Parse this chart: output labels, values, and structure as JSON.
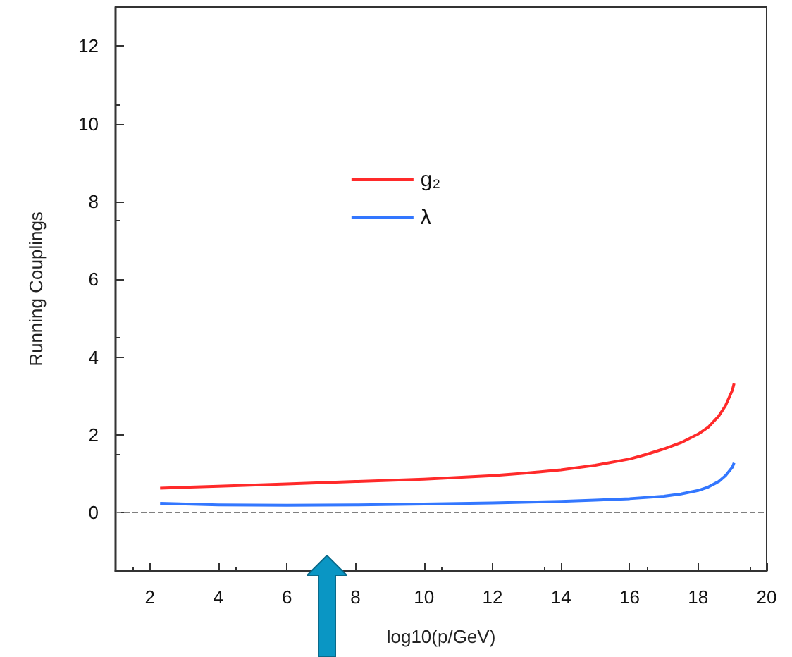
{
  "chart_data": {
    "type": "line",
    "xlabel": "log10(p/GeV)",
    "ylabel": "Running Couplings",
    "xlim": [
      1,
      20
    ],
    "xticks": [
      2,
      4,
      6,
      8,
      10,
      12,
      14,
      16,
      18,
      20
    ],
    "ylim": [
      -1.5,
      13
    ],
    "yticks": [
      0,
      2,
      4,
      6,
      8,
      10,
      12
    ],
    "grid": false,
    "legend": "top",
    "marker": "none",
    "line_style": "solid",
    "ref_lines": [
      {
        "axis": "y",
        "value": 0,
        "color": "#808080",
        "line_style": "dashed"
      }
    ],
    "series": [
      {
        "name": "g₂",
        "color": "#ff2a2a",
        "x": [
          2.3,
          4,
          6,
          8,
          10,
          12,
          13,
          14,
          15,
          16,
          16.5,
          17,
          17.5,
          18,
          18.3,
          18.6,
          18.8,
          19,
          19.05
        ],
        "values": [
          0.63,
          0.68,
          0.74,
          0.8,
          0.86,
          0.95,
          1.02,
          1.1,
          1.22,
          1.38,
          1.5,
          1.64,
          1.8,
          2.02,
          2.2,
          2.48,
          2.75,
          3.15,
          3.32
        ]
      },
      {
        "name": "λ",
        "color": "#3377ff",
        "x": [
          2.3,
          4,
          6,
          8,
          10,
          12,
          14,
          15,
          16,
          17,
          17.5,
          18,
          18.3,
          18.6,
          18.8,
          19,
          19.05
        ],
        "values": [
          0.24,
          0.2,
          0.19,
          0.2,
          0.22,
          0.25,
          0.29,
          0.32,
          0.36,
          0.42,
          0.48,
          0.57,
          0.66,
          0.8,
          0.95,
          1.17,
          1.28
        ]
      }
    ]
  }
}
